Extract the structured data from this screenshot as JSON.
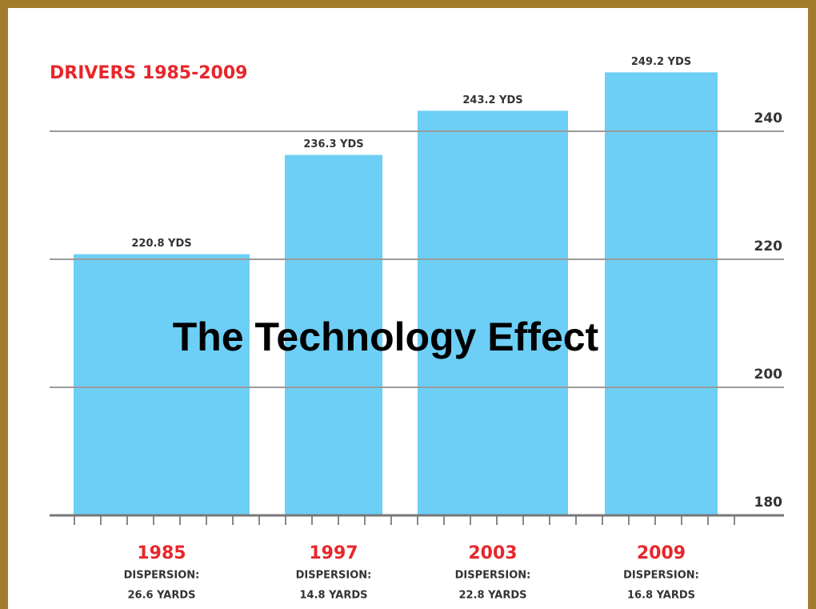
{
  "chart_data": {
    "type": "bar",
    "title": "The Technology Effect",
    "subtitle": "DRIVERS 1985-2009",
    "categories": [
      "1985",
      "1997",
      "2003",
      "2009"
    ],
    "values": [
      220.8,
      236.3,
      243.2,
      249.2
    ],
    "value_labels": [
      "220.8 YDS",
      "236.3 YDS",
      "243.2 YDS",
      "249.2 YDS"
    ],
    "dispersion_headings": [
      "DISPERSION:",
      "DISPERSION:",
      "DISPERSION:",
      "DISPERSION:"
    ],
    "dispersion_values": [
      "26.6 YARDS",
      "14.8 YARDS",
      "22.8 YARDS",
      "16.8 YARDS"
    ],
    "color": "#6dcff6",
    "ylim": [
      180,
      252
    ],
    "yticks": [
      180,
      200,
      220,
      240
    ],
    "grid": true
  }
}
